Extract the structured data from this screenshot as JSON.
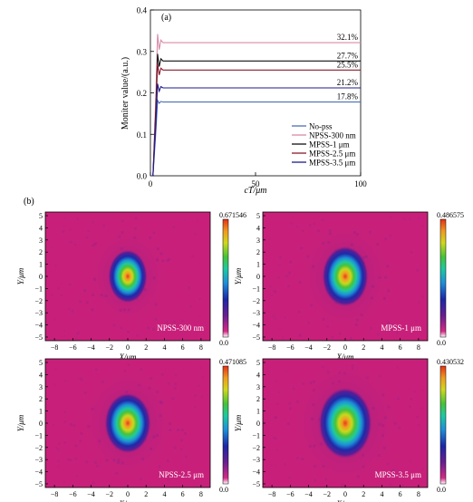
{
  "panel_a": {
    "label": "(a)",
    "chart_data": {
      "type": "line",
      "xlabel": "cT/μm",
      "ylabel": "Moniter value/(a.u.)",
      "xlim": [
        0,
        100
      ],
      "ylim": [
        0,
        0.4
      ],
      "x_ticks": [
        "0",
        "50",
        "100"
      ],
      "y_ticks": [
        "0.0",
        "0.1",
        "0.2",
        "0.3",
        "0.4"
      ],
      "legend_position": "bottom-right",
      "series": [
        {
          "name": "No-pss",
          "color": "#4a6fb5",
          "steady": 0.178,
          "peak": 0.182,
          "label": "17.8%"
        },
        {
          "name": "NPSS-300 nm",
          "color": "#d98aa8",
          "steady": 0.321,
          "peak": 0.342,
          "label": "32.1%"
        },
        {
          "name": "MPSS-1 μm",
          "color": "#111111",
          "steady": 0.277,
          "peak": 0.294,
          "label": "27.7%"
        },
        {
          "name": "MPSS-2.5 μm",
          "color": "#8b1a2b",
          "steady": 0.255,
          "peak": 0.27,
          "label": "25.5%"
        },
        {
          "name": "MPSS-3.5 μm",
          "color": "#1c1c8c",
          "steady": 0.212,
          "peak": 0.222,
          "label": "21.2%"
        }
      ]
    }
  },
  "panel_b": {
    "label": "(b)",
    "chart_data": [
      {
        "type": "heatmap",
        "name": "NPSS-300 nm",
        "max_label": "0.671546",
        "min_label": "0.0",
        "xlabel": "X/μm",
        "ylabel": "Y/μm",
        "xlim": [
          -9,
          9
        ],
        "ylim": [
          -5.3,
          5.3
        ],
        "x_ticks": [
          "-8",
          "-6",
          "-4",
          "-2",
          "0",
          "2",
          "4",
          "6",
          "8"
        ],
        "y_ticks": [
          "5",
          "4",
          "3",
          "2",
          "1",
          "0",
          "-1",
          "-2",
          "-3",
          "-4",
          "-5"
        ],
        "spot": "small"
      },
      {
        "type": "heatmap",
        "name": "MPSS-1 μm",
        "max_label": "0.486575",
        "min_label": "0.0",
        "xlabel": "X/μm",
        "ylabel": "Y/μm",
        "xlim": [
          -9,
          9
        ],
        "ylim": [
          -5.3,
          5.3
        ],
        "x_ticks": [
          "-8",
          "-6",
          "-4",
          "-2",
          "0",
          "2",
          "4",
          "6",
          "8"
        ],
        "y_ticks": [
          "5",
          "4",
          "3",
          "2",
          "1",
          "0",
          "-1",
          "-2",
          "-3",
          "-4",
          "-5"
        ],
        "spot": "medium"
      },
      {
        "type": "heatmap",
        "name": "NPSS-2.5 μm",
        "max_label": "0.471085",
        "min_label": "0.0",
        "xlabel": "X/μm",
        "ylabel": "Y/μm",
        "xlim": [
          -9,
          9
        ],
        "ylim": [
          -5.3,
          5.3
        ],
        "x_ticks": [
          "-8",
          "-6",
          "-4",
          "-2",
          "0",
          "2",
          "4",
          "6",
          "8"
        ],
        "y_ticks": [
          "5",
          "4",
          "3",
          "2",
          "1",
          "0",
          "-1",
          "-2",
          "-3",
          "-4",
          "-5"
        ],
        "spot": "medium"
      },
      {
        "type": "heatmap",
        "name": "MPSS-3.5 μm",
        "max_label": "0.430532",
        "min_label": "0.0",
        "xlabel": "X/μm",
        "ylabel": "Y/μm",
        "xlim": [
          -9,
          9
        ],
        "ylim": [
          -5.3,
          5.3
        ],
        "x_ticks": [
          "-8",
          "-6",
          "-4",
          "-2",
          "0",
          "2",
          "4",
          "6",
          "8"
        ],
        "y_ticks": [
          "5",
          "4",
          "3",
          "2",
          "1",
          "0",
          "-1",
          "-2",
          "-3",
          "-4",
          "-5"
        ],
        "spot": "large"
      }
    ]
  },
  "colormap": [
    "#c8207a",
    "#7a1f8f",
    "#1e2aa8",
    "#1e8fd8",
    "#1ec9a0",
    "#4cc23a",
    "#c8d81e",
    "#f0a020",
    "#e83a1e"
  ]
}
